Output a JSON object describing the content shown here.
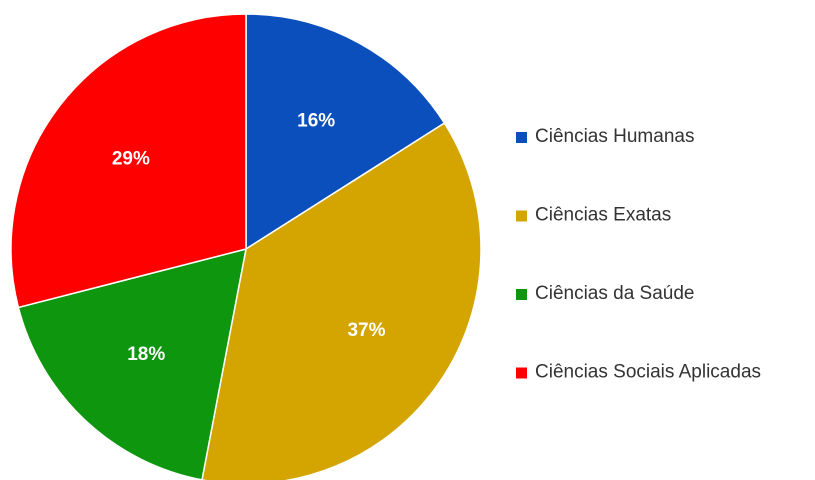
{
  "chart_data": {
    "type": "pie",
    "categories": [
      "Ciências Humanas",
      "Ciências Exatas",
      "Ciências da Saúde",
      "Ciências Sociais Aplicadas"
    ],
    "values": [
      16,
      37,
      18,
      29
    ],
    "value_labels": [
      "16%",
      "37%",
      "18%",
      "29%"
    ],
    "colors": [
      "#0b4fbd",
      "#d4a500",
      "#0e960e",
      "#ff0000"
    ],
    "legend": "right"
  }
}
